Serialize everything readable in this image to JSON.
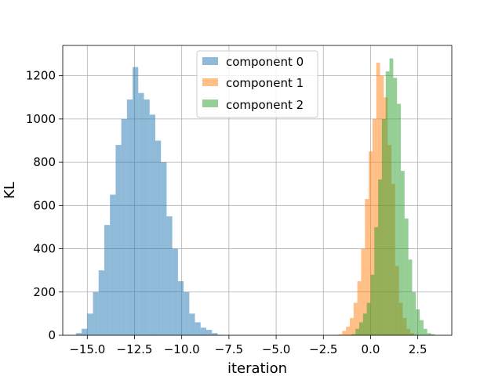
{
  "chart_data": {
    "type": "histogram",
    "title": "",
    "xlabel": "iteration",
    "ylabel": "KL",
    "xlim": [
      -16.3,
      4.3
    ],
    "ylim": [
      0,
      1340
    ],
    "grid": true,
    "legend_position": "top-center",
    "x_ticks": [
      -15.0,
      -12.5,
      -10.0,
      -7.5,
      -5.0,
      -2.5,
      0.0,
      2.5
    ],
    "x_tick_labels": [
      "−15.0",
      "−12.5",
      "−10.0",
      "−7.5",
      "−5.0",
      "−2.5",
      "0.0",
      "2.5"
    ],
    "y_ticks": [
      0,
      200,
      400,
      600,
      800,
      1000,
      1200
    ],
    "y_tick_labels": [
      "0",
      "200",
      "400",
      "600",
      "800",
      "1000",
      "1200"
    ],
    "series": [
      {
        "name": "component 0",
        "color": "#1f77b4",
        "bin_edges": [
          -15.6,
          -15.3,
          -15.0,
          -14.7,
          -14.4,
          -14.1,
          -13.8,
          -13.5,
          -13.2,
          -12.9,
          -12.6,
          -12.3,
          -12.0,
          -11.7,
          -11.4,
          -11.1,
          -10.8,
          -10.5,
          -10.2,
          -9.9,
          -9.6,
          -9.3,
          -9.0,
          -8.7,
          -8.4,
          -8.1,
          -7.8
        ],
        "counts": [
          10,
          30,
          100,
          200,
          300,
          510,
          650,
          880,
          1000,
          1090,
          1240,
          1120,
          1090,
          1020,
          900,
          800,
          550,
          400,
          250,
          200,
          100,
          60,
          35,
          25,
          10,
          2
        ]
      },
      {
        "name": "component 1",
        "color": "#ff7f0e",
        "bin_edges": [
          -1.7,
          -1.5,
          -1.3,
          -1.1,
          -0.9,
          -0.7,
          -0.5,
          -0.3,
          -0.1,
          0.1,
          0.3,
          0.5,
          0.7,
          0.9,
          1.1,
          1.3,
          1.5,
          1.7,
          1.9,
          2.1,
          2.3
        ],
        "counts": [
          5,
          20,
          40,
          80,
          150,
          250,
          400,
          630,
          850,
          1000,
          1260,
          1200,
          1100,
          880,
          700,
          320,
          150,
          80,
          30,
          10
        ]
      },
      {
        "name": "component 2",
        "color": "#2ca02c",
        "bin_edges": [
          -1.0,
          -0.8,
          -0.6,
          -0.4,
          -0.2,
          0.0,
          0.2,
          0.4,
          0.6,
          0.8,
          1.0,
          1.2,
          1.4,
          1.6,
          1.8,
          2.0,
          2.2,
          2.4,
          2.6,
          2.8,
          3.0,
          3.2,
          3.4
        ],
        "counts": [
          5,
          30,
          60,
          100,
          150,
          280,
          500,
          720,
          1000,
          1220,
          1280,
          1190,
          1070,
          760,
          540,
          350,
          200,
          120,
          70,
          30,
          10,
          5
        ]
      }
    ]
  }
}
